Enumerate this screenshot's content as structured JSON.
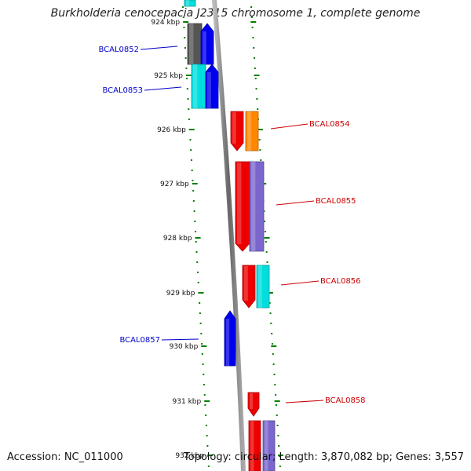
{
  "title": "Burkholderia cenocepacia J2315 chromosome 1, complete genome",
  "accession": "Accession: NC_011000",
  "summary": "Topology: circular; Length: 3,870,082 bp; Genes: 3,557",
  "colors": {
    "backbone": "#777777",
    "dots": "#008000",
    "minus_strand_label": "#0000cc",
    "plus_strand_label": "#cc0000",
    "gene_blue": "#0000ee",
    "gene_red": "#ee0000",
    "gene_cyan": "#00dddd",
    "gene_gray": "#555555",
    "gene_orange": "#ff8800",
    "gene_purple": "#7a66cc"
  },
  "ticks": [
    "924 kbp",
    "925 kbp",
    "926 kbp",
    "927 kbp",
    "928 kbp",
    "929 kbp",
    "930 kbp",
    "931 kbp",
    "932 kbp"
  ],
  "genes": [
    {
      "label": "BCAL0852",
      "strand": "minus",
      "color": "gene_gray"
    },
    {
      "label": "BCAL0853",
      "strand": "minus",
      "color": "gene_cyan"
    },
    {
      "label": "BCAL0854",
      "strand": "plus",
      "color": "gene_red"
    },
    {
      "label": "BCAL0855",
      "strand": "plus",
      "color": "gene_red"
    },
    {
      "label": "BCAL0856",
      "strand": "plus",
      "color": "gene_red"
    },
    {
      "label": "BCAL0857",
      "strand": "minus",
      "color": "gene_blue"
    },
    {
      "label": "BCAL0858",
      "strand": "plus",
      "color": "gene_red"
    }
  ]
}
